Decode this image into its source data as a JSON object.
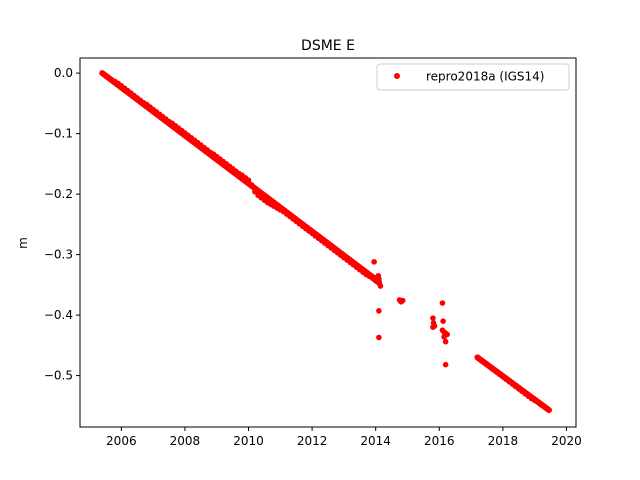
{
  "chart_data": {
    "type": "scatter",
    "title": "DSME E",
    "xlabel": "",
    "ylabel": "m",
    "xlim": [
      2004.7,
      2020.3
    ],
    "ylim": [
      -0.585,
      0.025
    ],
    "xticks": [
      2006,
      2008,
      2010,
      2012,
      2014,
      2016,
      2018,
      2020
    ],
    "xtick_labels": [
      "2006",
      "2008",
      "2010",
      "2012",
      "2014",
      "2016",
      "2018",
      "2020"
    ],
    "yticks": [
      0.0,
      -0.1,
      -0.2,
      -0.3,
      -0.4,
      -0.5
    ],
    "ytick_labels": [
      "0.0",
      "−0.1",
      "−0.2",
      "−0.3",
      "−0.4",
      "−0.5"
    ],
    "grid": false,
    "legend_position": "top-right",
    "series": [
      {
        "name": "repro2018a (IGS14)",
        "color": "#ff0000",
        "marker": "circle",
        "trend_segments": [
          {
            "x_start": 2005.4,
            "y_start": 0.0,
            "x_end": 2014.1,
            "y_end": -0.345
          },
          {
            "x_start": 2017.2,
            "y_start": -0.47,
            "x_end": 2019.45,
            "y_end": -0.557
          }
        ],
        "points": [
          [
            2005.4,
            0.0
          ],
          [
            2005.5,
            -0.004
          ],
          [
            2005.6,
            -0.008
          ],
          [
            2005.7,
            -0.011
          ],
          [
            2005.8,
            -0.014
          ],
          [
            2005.9,
            -0.017
          ],
          [
            2006.0,
            -0.021
          ],
          [
            2006.1,
            -0.025
          ],
          [
            2006.2,
            -0.029
          ],
          [
            2006.3,
            -0.033
          ],
          [
            2006.4,
            -0.037
          ],
          [
            2006.5,
            -0.041
          ],
          [
            2006.6,
            -0.045
          ],
          [
            2006.7,
            -0.049
          ],
          [
            2006.8,
            -0.052
          ],
          [
            2006.9,
            -0.056
          ],
          [
            2007.0,
            -0.06
          ],
          [
            2007.1,
            -0.064
          ],
          [
            2007.2,
            -0.068
          ],
          [
            2007.3,
            -0.072
          ],
          [
            2007.4,
            -0.076
          ],
          [
            2007.5,
            -0.08
          ],
          [
            2007.6,
            -0.083
          ],
          [
            2007.7,
            -0.087
          ],
          [
            2007.8,
            -0.091
          ],
          [
            2007.9,
            -0.095
          ],
          [
            2008.0,
            -0.099
          ],
          [
            2008.1,
            -0.103
          ],
          [
            2008.2,
            -0.107
          ],
          [
            2008.3,
            -0.111
          ],
          [
            2008.4,
            -0.115
          ],
          [
            2008.5,
            -0.119
          ],
          [
            2008.6,
            -0.123
          ],
          [
            2008.7,
            -0.127
          ],
          [
            2008.8,
            -0.131
          ],
          [
            2008.9,
            -0.134
          ],
          [
            2009.0,
            -0.138
          ],
          [
            2009.1,
            -0.142
          ],
          [
            2009.2,
            -0.146
          ],
          [
            2009.3,
            -0.15
          ],
          [
            2009.4,
            -0.154
          ],
          [
            2009.5,
            -0.158
          ],
          [
            2009.6,
            -0.162
          ],
          [
            2009.7,
            -0.166
          ],
          [
            2009.8,
            -0.169
          ],
          [
            2009.9,
            -0.173
          ],
          [
            2010.0,
            -0.177
          ],
          [
            2010.1,
            -0.185
          ],
          [
            2010.2,
            -0.196
          ],
          [
            2010.3,
            -0.202
          ],
          [
            2010.4,
            -0.206
          ],
          [
            2010.5,
            -0.21
          ],
          [
            2010.6,
            -0.214
          ],
          [
            2010.7,
            -0.217
          ],
          [
            2010.8,
            -0.22
          ],
          [
            2010.9,
            -0.223
          ],
          [
            2011.0,
            -0.226
          ],
          [
            2011.1,
            -0.229
          ],
          [
            2011.2,
            -0.233
          ],
          [
            2011.3,
            -0.237
          ],
          [
            2011.4,
            -0.241
          ],
          [
            2011.5,
            -0.245
          ],
          [
            2011.6,
            -0.249
          ],
          [
            2011.7,
            -0.253
          ],
          [
            2011.8,
            -0.257
          ],
          [
            2011.9,
            -0.261
          ],
          [
            2012.0,
            -0.265
          ],
          [
            2012.1,
            -0.269
          ],
          [
            2012.2,
            -0.273
          ],
          [
            2012.3,
            -0.277
          ],
          [
            2012.4,
            -0.281
          ],
          [
            2012.5,
            -0.285
          ],
          [
            2012.6,
            -0.289
          ],
          [
            2012.7,
            -0.293
          ],
          [
            2012.8,
            -0.297
          ],
          [
            2012.9,
            -0.301
          ],
          [
            2013.0,
            -0.305
          ],
          [
            2013.1,
            -0.309
          ],
          [
            2013.2,
            -0.313
          ],
          [
            2013.3,
            -0.317
          ],
          [
            2013.4,
            -0.321
          ],
          [
            2013.5,
            -0.325
          ],
          [
            2013.6,
            -0.329
          ],
          [
            2013.7,
            -0.333
          ],
          [
            2013.8,
            -0.336
          ],
          [
            2013.9,
            -0.339
          ],
          [
            2013.95,
            -0.341
          ],
          [
            2014.0,
            -0.343
          ],
          [
            2014.05,
            -0.345
          ],
          [
            2013.95,
            -0.312
          ],
          [
            2014.1,
            -0.34
          ],
          [
            2014.12,
            -0.348
          ],
          [
            2014.15,
            -0.352
          ],
          [
            2014.08,
            -0.335
          ],
          [
            2014.1,
            -0.393
          ],
          [
            2014.1,
            -0.437
          ],
          [
            2014.75,
            -0.375
          ],
          [
            2014.8,
            -0.378
          ],
          [
            2014.85,
            -0.376
          ],
          [
            2015.8,
            -0.405
          ],
          [
            2015.82,
            -0.413
          ],
          [
            2015.85,
            -0.418
          ],
          [
            2015.8,
            -0.42
          ],
          [
            2016.1,
            -0.38
          ],
          [
            2016.12,
            -0.41
          ],
          [
            2016.1,
            -0.425
          ],
          [
            2016.15,
            -0.428
          ],
          [
            2016.2,
            -0.43
          ],
          [
            2016.25,
            -0.432
          ],
          [
            2016.15,
            -0.436
          ],
          [
            2016.2,
            -0.444
          ],
          [
            2016.2,
            -0.482
          ],
          [
            2017.2,
            -0.47
          ],
          [
            2017.3,
            -0.474
          ],
          [
            2017.4,
            -0.478
          ],
          [
            2017.5,
            -0.482
          ],
          [
            2017.6,
            -0.486
          ],
          [
            2017.7,
            -0.49
          ],
          [
            2017.8,
            -0.494
          ],
          [
            2017.9,
            -0.498
          ],
          [
            2018.0,
            -0.502
          ],
          [
            2018.1,
            -0.506
          ],
          [
            2018.2,
            -0.51
          ],
          [
            2018.3,
            -0.514
          ],
          [
            2018.4,
            -0.518
          ],
          [
            2018.5,
            -0.522
          ],
          [
            2018.6,
            -0.526
          ],
          [
            2018.7,
            -0.53
          ],
          [
            2018.8,
            -0.534
          ],
          [
            2018.9,
            -0.538
          ],
          [
            2019.0,
            -0.541
          ],
          [
            2019.1,
            -0.544
          ],
          [
            2019.2,
            -0.548
          ],
          [
            2019.3,
            -0.551
          ],
          [
            2019.4,
            -0.555
          ],
          [
            2019.45,
            -0.557
          ]
        ]
      }
    ]
  }
}
